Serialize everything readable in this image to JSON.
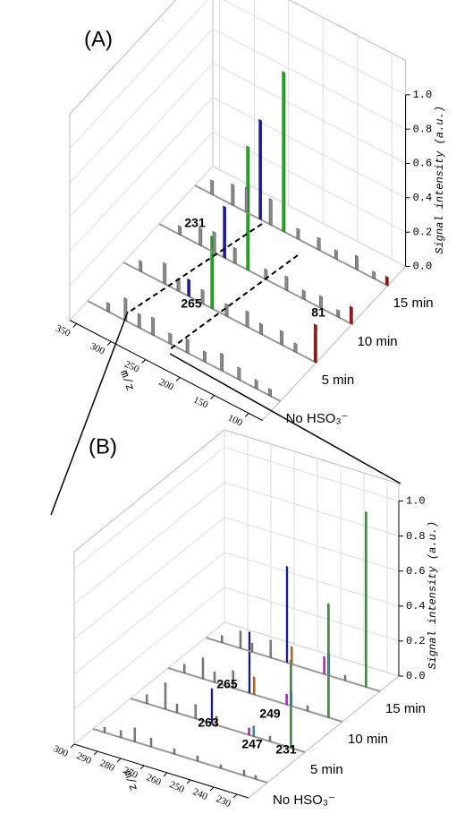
{
  "chart_data": [
    {
      "type": "bar3d",
      "label": "(A)",
      "xlabel": "m/z",
      "zlabel": "Signal intensity (a.u.)",
      "xlim": [
        360,
        80
      ],
      "xticks": [
        350,
        300,
        250,
        200,
        150,
        100
      ],
      "zlim": [
        0,
        1.2
      ],
      "zticks": [
        {
          "value": 0,
          "label": "0.0"
        },
        {
          "value": 0.2,
          "label": "0.2"
        },
        {
          "value": 0.4,
          "label": "0.4"
        },
        {
          "value": 0.6,
          "label": "0.6"
        },
        {
          "value": 0.8,
          "label": "0.8"
        },
        {
          "value": 1,
          "label": "1.0"
        }
      ],
      "series": [
        {
          "name": "No HSO₃⁻",
          "x": [
            330,
            305,
            285,
            265,
            240,
            215,
            190,
            165,
            140,
            115,
            95
          ],
          "values": [
            0.05,
            0.13,
            0.08,
            0.1,
            0.06,
            0.08,
            0.06,
            0.1,
            0.07,
            0.05,
            0.04
          ],
          "colors": [
            "#888888",
            "#888888",
            "#888888",
            "#888888",
            "#888888",
            "#888888",
            "#888888",
            "#888888",
            "#888888",
            "#888888",
            "#888888"
          ]
        },
        {
          "name": "5 min",
          "x": [
            335,
            300,
            280,
            265,
            245,
            231,
            210,
            180,
            160,
            130,
            110,
            81
          ],
          "values": [
            0.06,
            0.12,
            0.07,
            0.1,
            0.08,
            0.42,
            0.07,
            0.09,
            0.06,
            0.08,
            0.05,
            0.22
          ],
          "colors": [
            "#888888",
            "#888888",
            "#888888",
            "#1a1aa0",
            "#888888",
            "#22a722",
            "#888888",
            "#888888",
            "#888888",
            "#888888",
            "#888888",
            "#a01010"
          ]
        },
        {
          "name": "10 min",
          "x": [
            330,
            300,
            280,
            265,
            250,
            231,
            205,
            175,
            150,
            125,
            100,
            81
          ],
          "values": [
            0.05,
            0.1,
            0.12,
            0.3,
            0.09,
            0.72,
            0.06,
            0.08,
            0.05,
            0.07,
            0.04,
            0.1
          ],
          "colors": [
            "#888888",
            "#888888",
            "#888888",
            "#1a1aa0",
            "#888888",
            "#22a722",
            "#888888",
            "#888888",
            "#888888",
            "#888888",
            "#888888",
            "#a01010"
          ]
        },
        {
          "name": "15 min",
          "x": [
            335,
            305,
            285,
            265,
            250,
            231,
            210,
            180,
            155,
            125,
            100,
            81
          ],
          "values": [
            0.08,
            0.12,
            0.14,
            0.58,
            0.15,
            0.93,
            0.06,
            0.07,
            0.05,
            0.08,
            0.04,
            0.05
          ],
          "colors": [
            "#888888",
            "#888888",
            "#888888",
            "#1a1aa0",
            "#888888",
            "#22a722",
            "#888888",
            "#888888",
            "#888888",
            "#888888",
            "#888888",
            "#a01010"
          ]
        }
      ],
      "annotations": [
        "231",
        "265",
        "81"
      ]
    },
    {
      "type": "bar3d",
      "label": "(B)",
      "xlabel": "m/z",
      "zlabel": "Signal intensity (a.u.)",
      "xlim": [
        300,
        225
      ],
      "xticks": [
        300,
        290,
        280,
        270,
        260,
        250,
        240,
        230
      ],
      "zlim": [
        0,
        1.1
      ],
      "zticks": [
        {
          "value": 0,
          "label": "0.0"
        },
        {
          "value": 0.2,
          "label": "0.2"
        },
        {
          "value": 0.4,
          "label": "0.4"
        },
        {
          "value": 0.6,
          "label": "0.6"
        },
        {
          "value": 0.8,
          "label": "0.8"
        },
        {
          "value": 1,
          "label": "1.0"
        }
      ],
      "series": [
        {
          "name": "No HSO₃⁻",
          "x": [
            295,
            288,
            282,
            275,
            265,
            255,
            245,
            235,
            230
          ],
          "values": [
            0.03,
            0.04,
            0.08,
            0.05,
            0.03,
            0.03,
            0.02,
            0.03,
            0.02
          ],
          "colors": [
            "#888888",
            "#888888",
            "#888888",
            "#888888",
            "#888888",
            "#888888",
            "#888888",
            "#888888",
            "#888888"
          ]
        },
        {
          "name": "5 min",
          "x": [
            293,
            285,
            280,
            272,
            265,
            263,
            249,
            247,
            240,
            231
          ],
          "values": [
            0.05,
            0.15,
            0.05,
            0.08,
            0.2,
            0.05,
            0.04,
            0.06,
            0.03,
            0.5
          ],
          "colors": [
            "#888888",
            "#888888",
            "#888888",
            "#888888",
            "#1a1aa0",
            "#c87020",
            "#c020c0",
            "#20a0b0",
            "#888888",
            "#22a722"
          ]
        },
        {
          "name": "10 min",
          "x": [
            293,
            285,
            280,
            272,
            265,
            263,
            249,
            247,
            240,
            231
          ],
          "values": [
            0.05,
            0.12,
            0.06,
            0.1,
            0.35,
            0.1,
            0.06,
            0.08,
            0.03,
            0.65
          ],
          "colors": [
            "#888888",
            "#888888",
            "#888888",
            "#888888",
            "#1a1aa0",
            "#c87020",
            "#c020c0",
            "#20a0b0",
            "#888888",
            "#22a722"
          ]
        },
        {
          "name": "15 min",
          "x": [
            293,
            285,
            280,
            272,
            265,
            263,
            249,
            247,
            240,
            231
          ],
          "values": [
            0.04,
            0.1,
            0.05,
            0.1,
            0.55,
            0.1,
            0.1,
            0.12,
            0.03,
            1.0
          ],
          "colors": [
            "#888888",
            "#888888",
            "#888888",
            "#888888",
            "#1a1aa0",
            "#c87020",
            "#c020c0",
            "#20a0b0",
            "#888888",
            "#22a722"
          ]
        }
      ],
      "annotations": [
        "265",
        "263",
        "249",
        "247",
        "231"
      ]
    }
  ]
}
